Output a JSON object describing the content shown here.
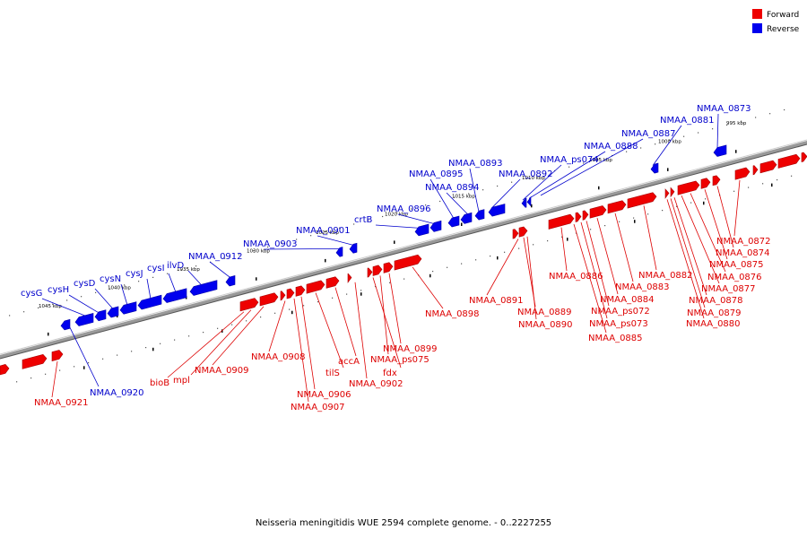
{
  "caption": "Neisseria meningitidis WUE 2594 complete genome. - 0..2227255",
  "legend": [
    {
      "label": "Forward",
      "color": "#ee0000"
    },
    {
      "label": "Reverse",
      "color": "#0000ee"
    }
  ],
  "ticks": [
    "995 kbp",
    "1000 kbp",
    "1005 kbp",
    "1010 kbp",
    "1015 kbp",
    "1020 kbp",
    "1025 kbp",
    "1030 kbp",
    "1035 kbp",
    "1040 kbp",
    "1045 kbp"
  ],
  "reverse_labels": [
    "NMAA_0873",
    "NMAA_0881",
    "NMAA_0887",
    "NMAA_0888",
    "NMAA_ps074",
    "NMAA_0892",
    "NMAA_0893",
    "NMAA_0894",
    "NMAA_0895",
    "NMAA_0896",
    "crtB",
    "NMAA_0901",
    "NMAA_0903",
    "NMAA_0912",
    "ilvD",
    "cysI",
    "cysJ",
    "cysN",
    "cysD",
    "cysH",
    "cysG",
    "NMAA_0920"
  ],
  "forward_labels": [
    "NMAA_0872",
    "NMAA_0874",
    "NMAA_0875",
    "NMAA_0876",
    "NMAA_0877",
    "NMAA_0878",
    "NMAA_0879",
    "NMAA_0880",
    "NMAA_0882",
    "NMAA_0883",
    "NMAA_0884",
    "NMAA_ps072",
    "NMAA_ps073",
    "NMAA_0885",
    "NMAA_0886",
    "NMAA_0891",
    "NMAA_0889",
    "NMAA_0890",
    "NMAA_0898",
    "NMAA_0899",
    "NMAA_ps075",
    "fdx",
    "NMAA_0902",
    "accA",
    "tilS",
    "NMAA_0906",
    "NMAA_0907",
    "NMAA_0908",
    "NMAA_0909",
    "mpl",
    "bioB",
    "NMAA_0921"
  ]
}
